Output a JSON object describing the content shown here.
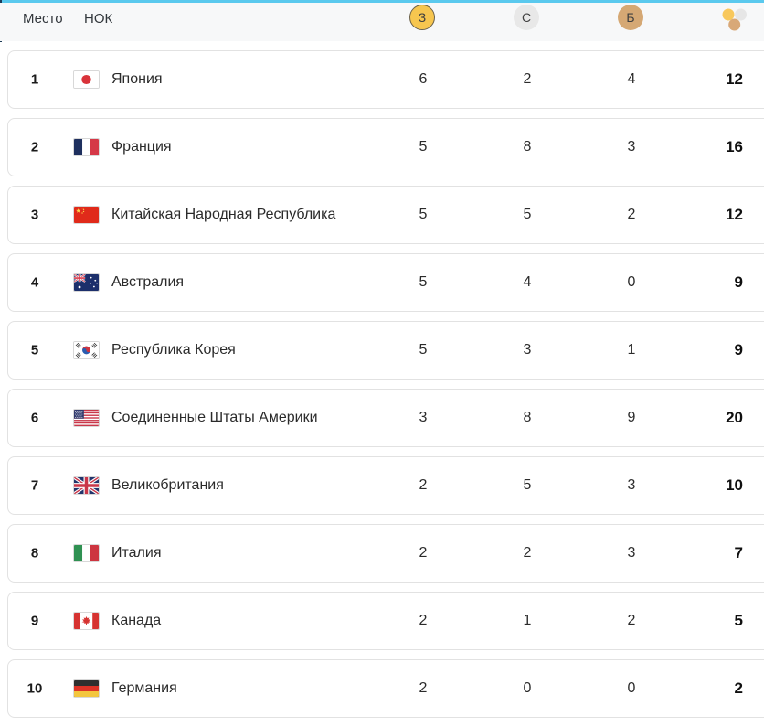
{
  "header": {
    "place_label": "Место",
    "noc_label": "НОК",
    "gold_label": "З",
    "silver_label": "С",
    "bronze_label": "Б"
  },
  "colors": {
    "top_accent": "#5ac9ee",
    "gold": "#f7c64f",
    "gold_border": "#6b614a",
    "silver": "#e8e8e8",
    "bronze": "#d5a874",
    "header_bg": "#f7f8f9",
    "card_border": "#e2e2e2"
  },
  "rows": [
    {
      "rank": "1",
      "country": "Япония",
      "code": "jp",
      "gold": "6",
      "silver": "2",
      "bronze": "4",
      "total": "12"
    },
    {
      "rank": "2",
      "country": "Франция",
      "code": "fr",
      "gold": "5",
      "silver": "8",
      "bronze": "3",
      "total": "16"
    },
    {
      "rank": "3",
      "country": "Китайская Народная Республика",
      "code": "cn",
      "gold": "5",
      "silver": "5",
      "bronze": "2",
      "total": "12"
    },
    {
      "rank": "4",
      "country": "Австралия",
      "code": "au",
      "gold": "5",
      "silver": "4",
      "bronze": "0",
      "total": "9"
    },
    {
      "rank": "5",
      "country": "Республика Корея",
      "code": "kr",
      "gold": "5",
      "silver": "3",
      "bronze": "1",
      "total": "9"
    },
    {
      "rank": "6",
      "country": "Соединенные Штаты Америки",
      "code": "us",
      "gold": "3",
      "silver": "8",
      "bronze": "9",
      "total": "20"
    },
    {
      "rank": "7",
      "country": "Великобритания",
      "code": "gb",
      "gold": "2",
      "silver": "5",
      "bronze": "3",
      "total": "10"
    },
    {
      "rank": "8",
      "country": "Италия",
      "code": "it",
      "gold": "2",
      "silver": "2",
      "bronze": "3",
      "total": "7"
    },
    {
      "rank": "9",
      "country": "Канада",
      "code": "ca",
      "gold": "2",
      "silver": "1",
      "bronze": "2",
      "total": "5"
    },
    {
      "rank": "10",
      "country": "Германия",
      "code": "de",
      "gold": "2",
      "silver": "0",
      "bronze": "0",
      "total": "2"
    }
  ]
}
